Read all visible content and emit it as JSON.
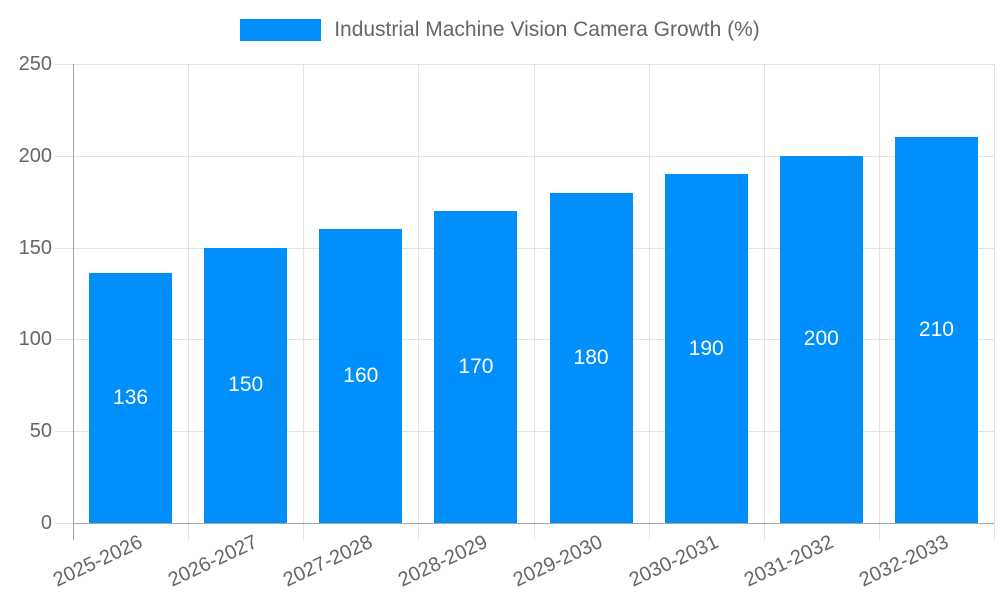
{
  "chart_data": {
    "type": "bar",
    "title": "",
    "xlabel": "",
    "ylabel": "",
    "legend_position": "top",
    "grid": true,
    "series_name": "Industrial Machine Vision Camera Growth (%)",
    "categories": [
      "2025-2026",
      "2026-2027",
      "2027-2028",
      "2028-2029",
      "2029-2030",
      "2030-2031",
      "2031-2032",
      "2032-2033"
    ],
    "values": [
      136,
      150,
      160,
      170,
      180,
      190,
      200,
      210
    ],
    "ylim": [
      0,
      250
    ],
    "ytick_step": 50,
    "yticks": [
      "0",
      "50",
      "100",
      "150",
      "200",
      "250"
    ],
    "colors": {
      "bar": "#008FFB",
      "bar_label": "#ffffff",
      "axis_text": "#666666",
      "grid_line": "#e3e3e3",
      "axis_border": "#a6a6a6",
      "legend_text": "#666666"
    }
  }
}
